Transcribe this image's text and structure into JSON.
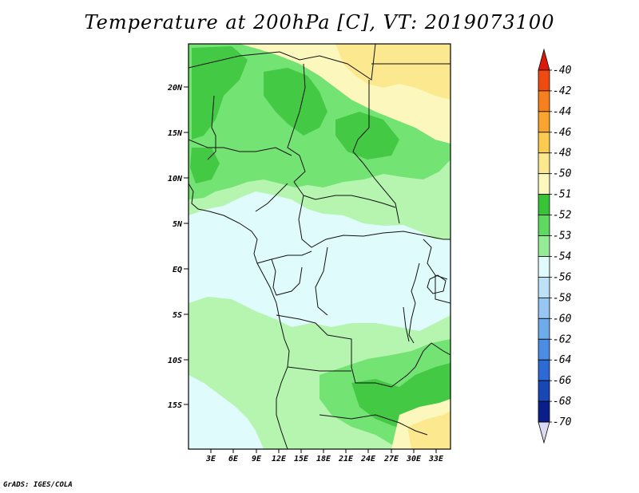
{
  "title": "Temperature at 200hPa [C], VT: 2019073100",
  "credit": "GrADS: IGES/COLA",
  "map": {
    "lat_ticks": [
      "20N",
      "15N",
      "10N",
      "5N",
      "EQ",
      "5S",
      "10S",
      "15S"
    ],
    "lon_ticks": [
      "3E",
      "6E",
      "9E",
      "12E",
      "15E",
      "18E",
      "21E",
      "24E",
      "27E",
      "30E",
      "33E"
    ]
  },
  "colorbar": {
    "labels": [
      "-40",
      "-42",
      "-44",
      "-46",
      "-48",
      "-50",
      "-51",
      "-52",
      "-53",
      "-54",
      "-56",
      "-58",
      "-60",
      "-62",
      "-64",
      "-66",
      "-68",
      "-70"
    ],
    "colors": [
      "#dd1a0a",
      "#ef4b10",
      "#f7801c",
      "#f9a42c",
      "#fbcb50",
      "#fce88e",
      "#fcf7bd",
      "#37c437",
      "#5fd85f",
      "#96ec96",
      "#e0fbfb",
      "#bde1f7",
      "#96c6f1",
      "#6eabeb",
      "#4a8de2",
      "#2d6ad6",
      "#1847b8",
      "#0a1f8a",
      "#dadaf5"
    ]
  },
  "regions": {
    "colors": {
      "ocean": "#e0fbfb",
      "minus53": "#b5f5b0",
      "minus52": "#73e373",
      "minus51": "#44c944",
      "minus50": "#fcf7bd",
      "minus48": "#fce88e"
    }
  }
}
